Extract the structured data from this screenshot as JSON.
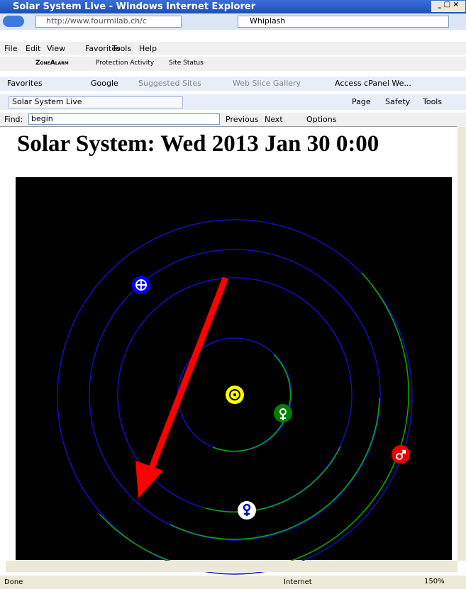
{
  "window": {
    "title": "Solar System Live - Windows Internet Explorer"
  },
  "address_bar": {
    "url": "http://www.fourmilab.ch/c",
    "search": "Whiplash"
  },
  "menu": [
    "File",
    "Edit",
    "View",
    "Favorites",
    "Tools",
    "Help"
  ],
  "toolbar": {
    "brand": "ZoneAlarm",
    "items": [
      "Protection Activity",
      "Site Status"
    ]
  },
  "favorites_bar": {
    "label": "Favorites",
    "items": [
      "Google",
      "Suggested Sites",
      "Web Slice Gallery",
      "Access cPanel We..."
    ]
  },
  "tab": {
    "title": "Solar System Live"
  },
  "command_bar": [
    "Page",
    "Safety",
    "Tools"
  ],
  "find_bar": {
    "label": "Find:",
    "query": "begin",
    "buttons": [
      "Previous",
      "Next",
      "Options"
    ]
  },
  "content": {
    "heading": "Solar System: Wed 2013 Jan 30 0:00"
  },
  "status_bar": {
    "text": "Done",
    "zone": "Internet",
    "zoom": "150%"
  }
}
